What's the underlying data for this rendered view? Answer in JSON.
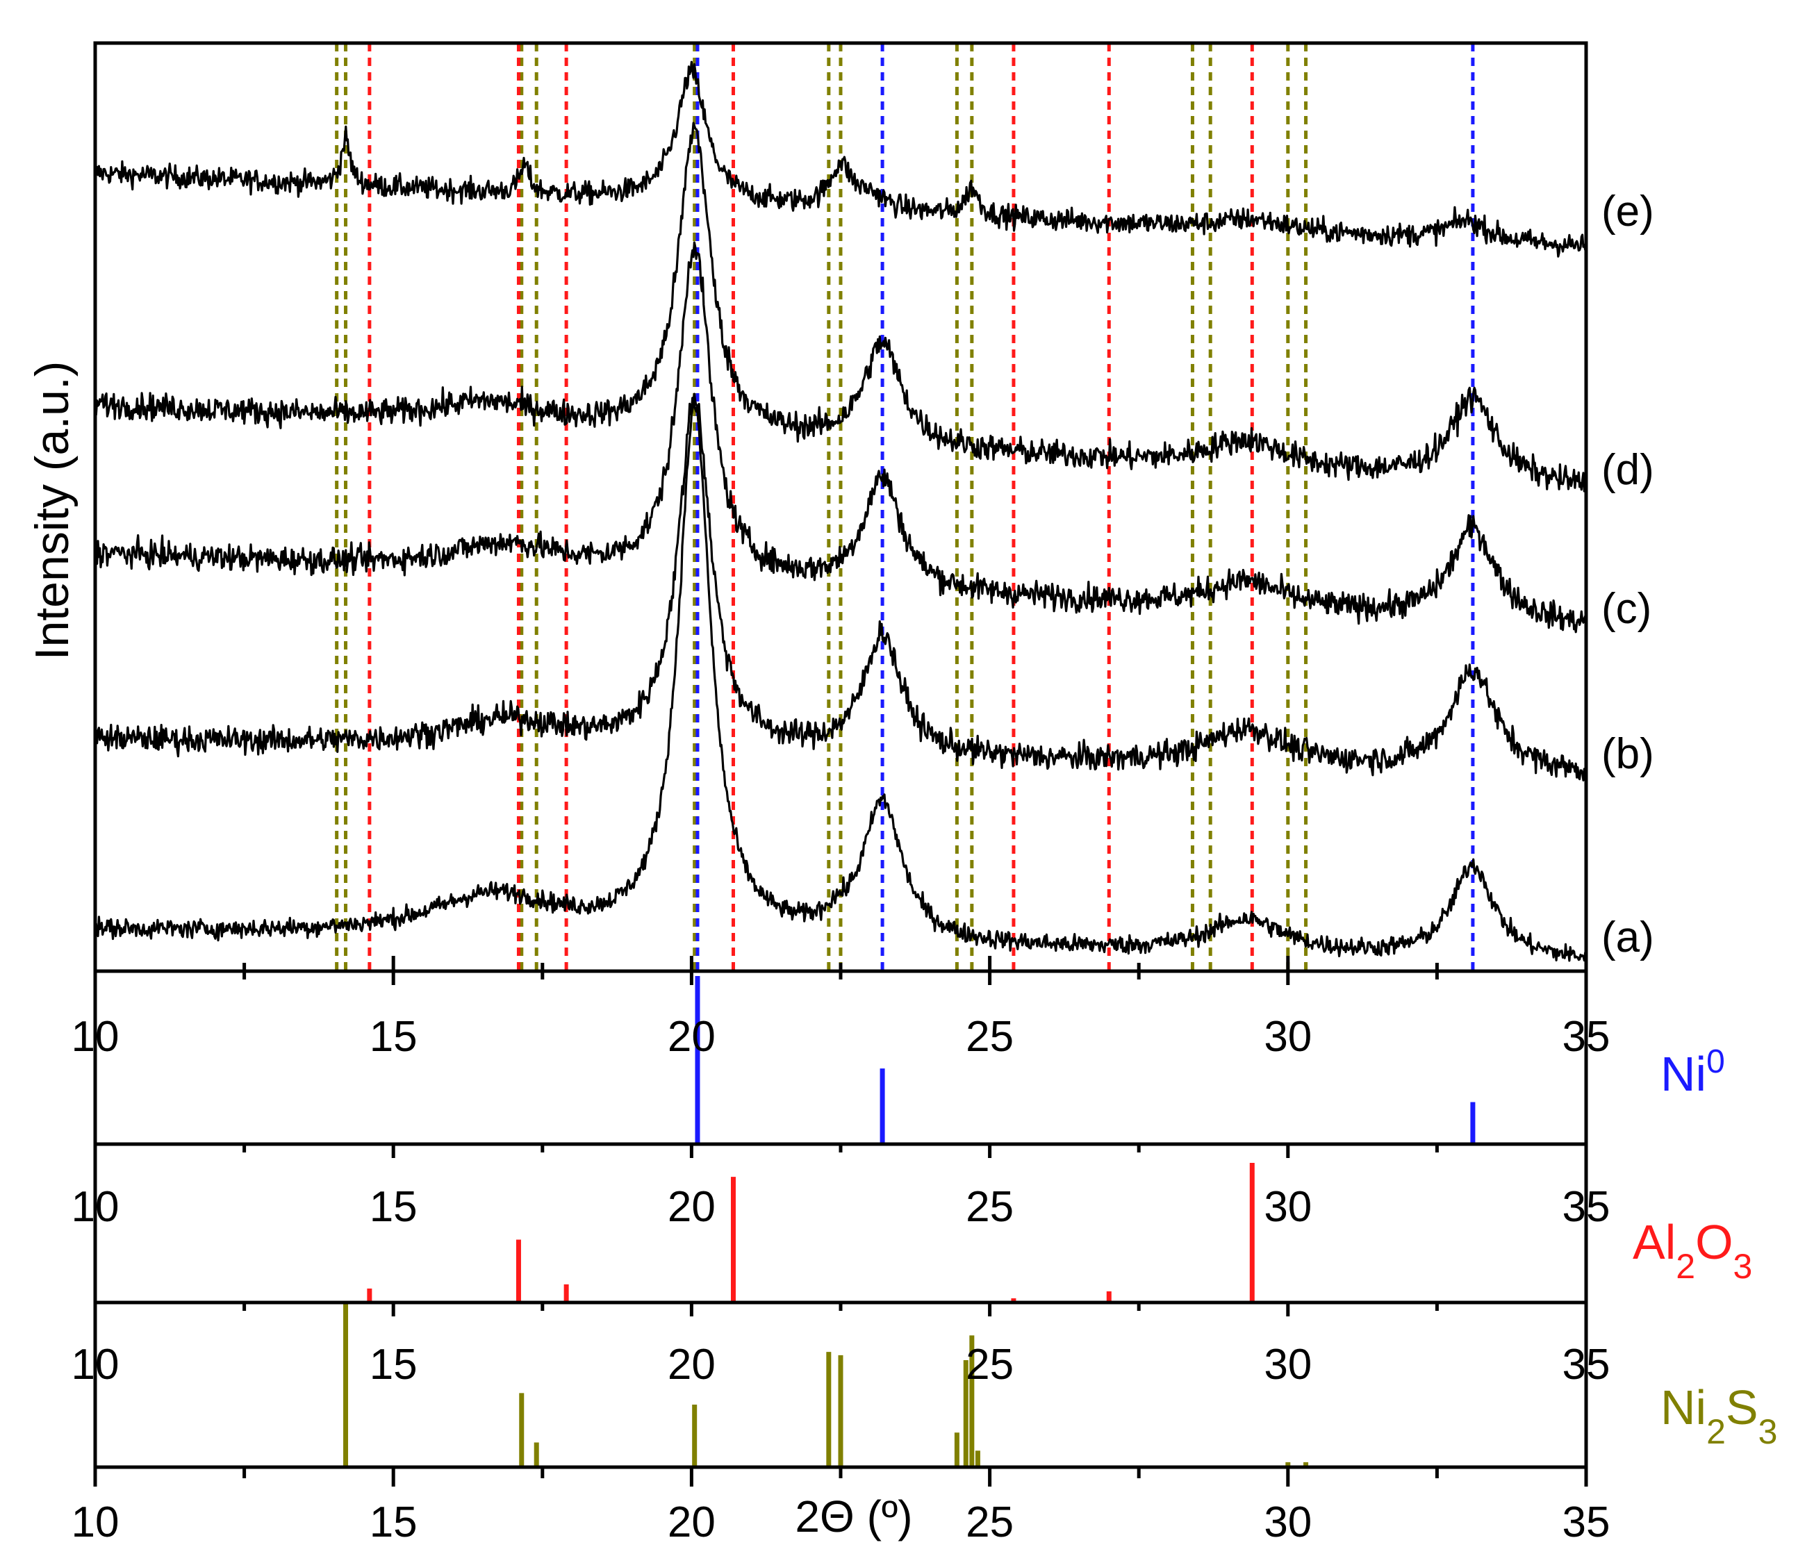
{
  "chart_data": {
    "type": "line",
    "title": "",
    "xlabel": "2Θ (º)",
    "ylabel": "Intensity (a.u.)",
    "xlim": [
      10,
      35
    ],
    "x_ticks": [
      10,
      15,
      20,
      25,
      30,
      35
    ],
    "x_tick_labels": [
      "10",
      "15",
      "20",
      "25",
      "30",
      "35"
    ],
    "grid": false,
    "colors": {
      "pattern": "#000000",
      "ni0": "#1a1aff",
      "al2o3": "#ff1a1a",
      "ni2s3": "#808000"
    },
    "series": [
      {
        "name": "(e)",
        "label": "(e)",
        "base": 0.8,
        "start_level": 0.06,
        "end_level": -0.02,
        "noise": 0.006,
        "peaks": [
          [
            14.2,
            0.05,
            0.09
          ],
          [
            17.2,
            0.03,
            0.1
          ],
          [
            20.0,
            0.14,
            0.3
          ],
          [
            22.5,
            0.045,
            0.22
          ],
          [
            23.0,
            0.015,
            0.3
          ],
          [
            24.7,
            0.03,
            0.13
          ],
          [
            29.4,
            0.012,
            0.7
          ],
          [
            33.0,
            0.022,
            0.42
          ]
        ]
      },
      {
        "name": "(d)",
        "label": "(d)",
        "base": 0.54,
        "start_level": 0.07,
        "end_level": -0.02,
        "noise": 0.007,
        "peaks": [
          [
            16.6,
            0.025,
            1.2
          ],
          [
            20.05,
            0.33,
            0.33
          ],
          [
            23.2,
            0.11,
            0.38
          ],
          [
            29.3,
            0.03,
            0.8
          ],
          [
            33.1,
            0.09,
            0.45
          ]
        ]
      },
      {
        "name": "(c)",
        "label": "(c)",
        "base": 0.38,
        "start_level": 0.07,
        "end_level": -0.01,
        "noise": 0.007,
        "peaks": [
          [
            16.9,
            0.03,
            1.2
          ],
          [
            20.05,
            0.36,
            0.33
          ],
          [
            23.2,
            0.12,
            0.38
          ],
          [
            29.3,
            0.03,
            0.8
          ],
          [
            33.1,
            0.1,
            0.45
          ]
        ]
      },
      {
        "name": "(b)",
        "label": "(b)",
        "base": 0.22,
        "start_level": 0.03,
        "end_level": -0.01,
        "noise": 0.007,
        "peaks": [
          [
            16.9,
            0.03,
            1.2
          ],
          [
            20.05,
            0.38,
            0.33
          ],
          [
            23.2,
            0.13,
            0.38
          ],
          [
            29.3,
            0.04,
            0.8
          ],
          [
            33.1,
            0.11,
            0.45
          ]
        ]
      },
      {
        "name": "(a)",
        "label": "(a)",
        "base": 0.04,
        "start_level": 0.004,
        "end_level": -0.03,
        "noise": 0.005,
        "peaks": [
          [
            16.7,
            0.045,
            1.3
          ],
          [
            20.05,
            0.57,
            0.33
          ],
          [
            22.4,
            0.01,
            0.2
          ],
          [
            23.2,
            0.15,
            0.4
          ],
          [
            29.3,
            0.036,
            0.75
          ],
          [
            33.1,
            0.1,
            0.42
          ]
        ]
      }
    ],
    "guide_lines": [
      {
        "phase": "Ni2S3",
        "positions": [
          14.05,
          14.2,
          17.15,
          17.4,
          20.05,
          22.3,
          22.5,
          24.45,
          24.7,
          28.4,
          28.7,
          30.0,
          30.3
        ]
      },
      {
        "phase": "Al2O3",
        "positions": [
          14.6,
          17.1,
          17.9,
          20.7,
          25.4,
          27.0,
          29.4
        ]
      },
      {
        "phase": "Ni0",
        "positions": [
          20.1,
          23.2,
          33.1
        ]
      }
    ],
    "reference_patterns": [
      {
        "name": "Ni0",
        "label_main": "Ni",
        "label_sup": "0",
        "sticks": [
          [
            20.1,
            100
          ],
          [
            23.2,
            45
          ],
          [
            33.1,
            25
          ]
        ]
      },
      {
        "name": "Al2O3",
        "label_parts": [
          [
            "Al",
            "n"
          ],
          [
            "2",
            "sub"
          ],
          [
            "O",
            "n"
          ],
          [
            "3",
            "sub"
          ]
        ],
        "sticks": [
          [
            14.6,
            10
          ],
          [
            17.1,
            45
          ],
          [
            17.9,
            13
          ],
          [
            20.7,
            90
          ],
          [
            25.4,
            3
          ],
          [
            27.0,
            8
          ],
          [
            29.4,
            100
          ]
        ]
      },
      {
        "name": "Ni2S3",
        "label_parts": [
          [
            "Ni",
            "n"
          ],
          [
            "2",
            "sub"
          ],
          [
            "S",
            "n"
          ],
          [
            "3",
            "sub"
          ]
        ],
        "sticks": [
          [
            14.2,
            100
          ],
          [
            17.15,
            45
          ],
          [
            17.4,
            15
          ],
          [
            20.05,
            38
          ],
          [
            22.3,
            70
          ],
          [
            22.5,
            68
          ],
          [
            24.45,
            21
          ],
          [
            24.6,
            65
          ],
          [
            24.7,
            80
          ],
          [
            24.8,
            10
          ],
          [
            30.0,
            3
          ],
          [
            30.3,
            3
          ]
        ]
      }
    ]
  }
}
